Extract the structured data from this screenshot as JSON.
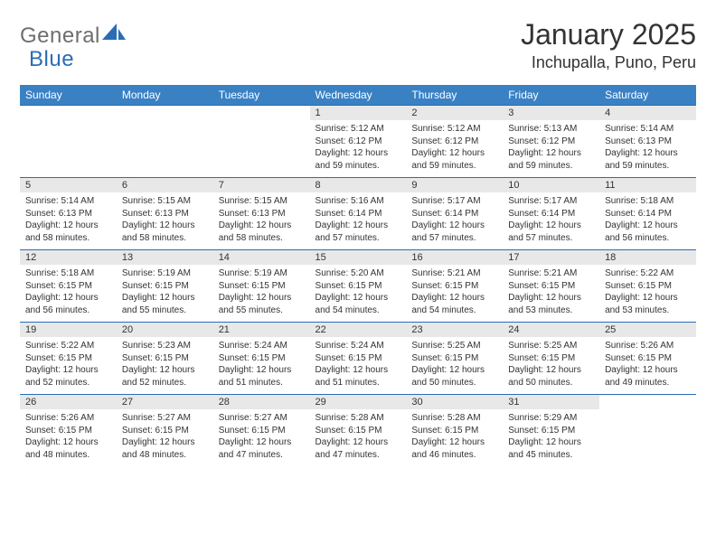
{
  "logo": {
    "general": "General",
    "blue": "Blue"
  },
  "title": "January 2025",
  "location": "Inchupalla, Puno, Peru",
  "colors": {
    "header_bg": "#3a81c4",
    "header_text": "#ffffff",
    "border": "#2a6db5",
    "daynum_bg": "#e8e8e8",
    "text": "#333333",
    "logo_gray": "#6e6e6e",
    "logo_blue": "#2a6db5",
    "page_bg": "#ffffff"
  },
  "days": [
    "Sunday",
    "Monday",
    "Tuesday",
    "Wednesday",
    "Thursday",
    "Friday",
    "Saturday"
  ],
  "weeks": [
    {
      "nums": [
        "",
        "",
        "",
        "1",
        "2",
        "3",
        "4"
      ],
      "cells": [
        null,
        null,
        null,
        {
          "sr": "5:12 AM",
          "ss": "6:12 PM",
          "dl": "12 hours and 59 minutes."
        },
        {
          "sr": "5:12 AM",
          "ss": "6:12 PM",
          "dl": "12 hours and 59 minutes."
        },
        {
          "sr": "5:13 AM",
          "ss": "6:12 PM",
          "dl": "12 hours and 59 minutes."
        },
        {
          "sr": "5:14 AM",
          "ss": "6:13 PM",
          "dl": "12 hours and 59 minutes."
        }
      ]
    },
    {
      "nums": [
        "5",
        "6",
        "7",
        "8",
        "9",
        "10",
        "11"
      ],
      "cells": [
        {
          "sr": "5:14 AM",
          "ss": "6:13 PM",
          "dl": "12 hours and 58 minutes."
        },
        {
          "sr": "5:15 AM",
          "ss": "6:13 PM",
          "dl": "12 hours and 58 minutes."
        },
        {
          "sr": "5:15 AM",
          "ss": "6:13 PM",
          "dl": "12 hours and 58 minutes."
        },
        {
          "sr": "5:16 AM",
          "ss": "6:14 PM",
          "dl": "12 hours and 57 minutes."
        },
        {
          "sr": "5:17 AM",
          "ss": "6:14 PM",
          "dl": "12 hours and 57 minutes."
        },
        {
          "sr": "5:17 AM",
          "ss": "6:14 PM",
          "dl": "12 hours and 57 minutes."
        },
        {
          "sr": "5:18 AM",
          "ss": "6:14 PM",
          "dl": "12 hours and 56 minutes."
        }
      ]
    },
    {
      "nums": [
        "12",
        "13",
        "14",
        "15",
        "16",
        "17",
        "18"
      ],
      "cells": [
        {
          "sr": "5:18 AM",
          "ss": "6:15 PM",
          "dl": "12 hours and 56 minutes."
        },
        {
          "sr": "5:19 AM",
          "ss": "6:15 PM",
          "dl": "12 hours and 55 minutes."
        },
        {
          "sr": "5:19 AM",
          "ss": "6:15 PM",
          "dl": "12 hours and 55 minutes."
        },
        {
          "sr": "5:20 AM",
          "ss": "6:15 PM",
          "dl": "12 hours and 54 minutes."
        },
        {
          "sr": "5:21 AM",
          "ss": "6:15 PM",
          "dl": "12 hours and 54 minutes."
        },
        {
          "sr": "5:21 AM",
          "ss": "6:15 PM",
          "dl": "12 hours and 53 minutes."
        },
        {
          "sr": "5:22 AM",
          "ss": "6:15 PM",
          "dl": "12 hours and 53 minutes."
        }
      ]
    },
    {
      "nums": [
        "19",
        "20",
        "21",
        "22",
        "23",
        "24",
        "25"
      ],
      "cells": [
        {
          "sr": "5:22 AM",
          "ss": "6:15 PM",
          "dl": "12 hours and 52 minutes."
        },
        {
          "sr": "5:23 AM",
          "ss": "6:15 PM",
          "dl": "12 hours and 52 minutes."
        },
        {
          "sr": "5:24 AM",
          "ss": "6:15 PM",
          "dl": "12 hours and 51 minutes."
        },
        {
          "sr": "5:24 AM",
          "ss": "6:15 PM",
          "dl": "12 hours and 51 minutes."
        },
        {
          "sr": "5:25 AM",
          "ss": "6:15 PM",
          "dl": "12 hours and 50 minutes."
        },
        {
          "sr": "5:25 AM",
          "ss": "6:15 PM",
          "dl": "12 hours and 50 minutes."
        },
        {
          "sr": "5:26 AM",
          "ss": "6:15 PM",
          "dl": "12 hours and 49 minutes."
        }
      ]
    },
    {
      "nums": [
        "26",
        "27",
        "28",
        "29",
        "30",
        "31",
        ""
      ],
      "cells": [
        {
          "sr": "5:26 AM",
          "ss": "6:15 PM",
          "dl": "12 hours and 48 minutes."
        },
        {
          "sr": "5:27 AM",
          "ss": "6:15 PM",
          "dl": "12 hours and 48 minutes."
        },
        {
          "sr": "5:27 AM",
          "ss": "6:15 PM",
          "dl": "12 hours and 47 minutes."
        },
        {
          "sr": "5:28 AM",
          "ss": "6:15 PM",
          "dl": "12 hours and 47 minutes."
        },
        {
          "sr": "5:28 AM",
          "ss": "6:15 PM",
          "dl": "12 hours and 46 minutes."
        },
        {
          "sr": "5:29 AM",
          "ss": "6:15 PM",
          "dl": "12 hours and 45 minutes."
        },
        null
      ]
    }
  ],
  "labels": {
    "sunrise": "Sunrise: ",
    "sunset": "Sunset: ",
    "daylight": "Daylight: "
  }
}
